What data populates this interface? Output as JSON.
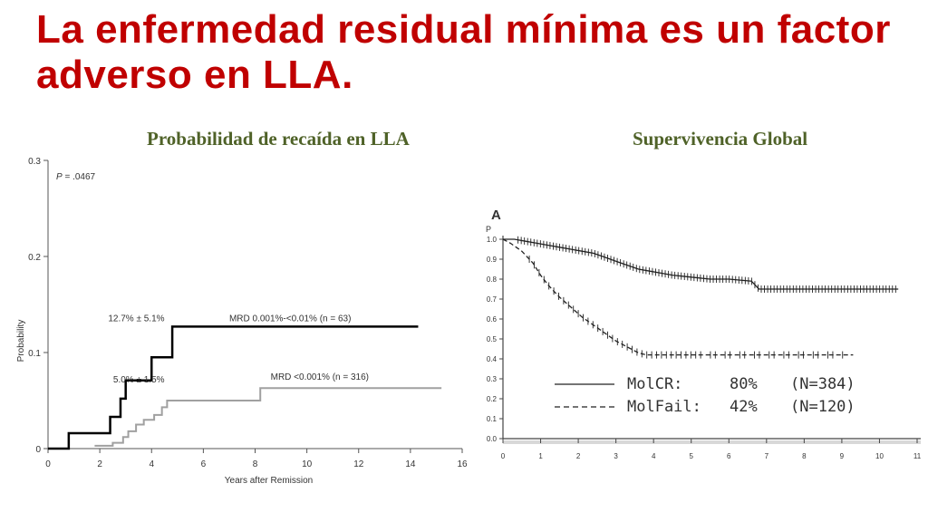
{
  "title": "La enfermedad residual mínima es un factor adverso en LLA.",
  "colors": {
    "title": "#c00000",
    "subtitle": "#4f6228",
    "series_dark": "#000000",
    "series_light": "#a0a0a0"
  },
  "chart_data": [
    {
      "type": "line",
      "subtitle": "Probabilidad de recaída en LLA",
      "xlabel": "Years after Remission",
      "ylabel": "Probability",
      "xlim": [
        0,
        16
      ],
      "ylim": [
        0,
        0.3
      ],
      "xticks": [
        "0",
        "2",
        "4",
        "6",
        "8",
        "10",
        "12",
        "14",
        "16"
      ],
      "yticks": [
        "0",
        "0.1",
        "0.2",
        "0.3"
      ],
      "pvalue_label": "P",
      "pvalue_text": " = .0467",
      "series": [
        {
          "name": "MRD 0.001%-<0.01%  (n = 63)",
          "annotation": "12.7% ± 5.1%",
          "color": "#000000",
          "step": true,
          "x": [
            0,
            0.8,
            2.4,
            2.8,
            3.0,
            4.0,
            4.8,
            14.3
          ],
          "y": [
            0,
            0.016,
            0.033,
            0.052,
            0.071,
            0.095,
            0.127,
            0.127
          ]
        },
        {
          "name": "MRD <0.001%  (n = 316)",
          "annotation": "5.0% ± 1.5%",
          "color": "#a0a0a0",
          "step": true,
          "x": [
            1.8,
            2.5,
            2.9,
            3.1,
            3.4,
            3.7,
            4.1,
            4.4,
            4.6,
            8.2,
            15.2
          ],
          "y": [
            0.003,
            0.006,
            0.012,
            0.018,
            0.025,
            0.03,
            0.035,
            0.043,
            0.05,
            0.063,
            0.063
          ]
        }
      ]
    },
    {
      "type": "line",
      "subtitle": "Supervivencia Global",
      "panel_label": "A",
      "ylabel": "P",
      "xlim": [
        0,
        11
      ],
      "ylim": [
        0,
        1.0
      ],
      "xticks": [
        "0",
        "1",
        "2",
        "3",
        "4",
        "5",
        "6",
        "7",
        "8",
        "9",
        "10",
        "11"
      ],
      "yticks": [
        "0.0",
        "0.1",
        "0.2",
        "0.3",
        "0.4",
        "0.5",
        "0.6",
        "0.7",
        "0.8",
        "0.9",
        "1.0"
      ],
      "legend": [
        {
          "name": "MolCR:",
          "pct": "80%",
          "n": "(N=384)",
          "dash": "solid"
        },
        {
          "name": "MolFail:",
          "pct": "42%",
          "n": "(N=120)",
          "dash": "dashed"
        }
      ],
      "series": [
        {
          "name": "MolCR",
          "color": "#222222",
          "dash": "solid",
          "step": false,
          "x": [
            0,
            0.3,
            0.6,
            0.9,
            1.2,
            1.5,
            1.8,
            2.1,
            2.4,
            2.7,
            3.0,
            3.3,
            3.6,
            3.9,
            4.2,
            4.5,
            5.0,
            5.5,
            6.0,
            6.6,
            6.8,
            7.5,
            8.5,
            9.5,
            10.5
          ],
          "y": [
            1.0,
            1.0,
            0.99,
            0.98,
            0.97,
            0.96,
            0.95,
            0.94,
            0.93,
            0.91,
            0.89,
            0.87,
            0.85,
            0.84,
            0.83,
            0.82,
            0.81,
            0.8,
            0.8,
            0.79,
            0.75,
            0.75,
            0.75,
            0.75,
            0.75
          ]
        },
        {
          "name": "MolFail",
          "color": "#222222",
          "dash": "dashed",
          "step": false,
          "x": [
            0,
            0.2,
            0.5,
            0.8,
            1.0,
            1.2,
            1.5,
            1.8,
            2.1,
            2.4,
            2.7,
            3.0,
            3.3,
            3.6,
            3.8,
            4.5,
            5.5,
            6.5,
            7.5,
            8.5,
            9.3
          ],
          "y": [
            1.0,
            0.98,
            0.94,
            0.88,
            0.82,
            0.77,
            0.71,
            0.66,
            0.61,
            0.57,
            0.53,
            0.49,
            0.46,
            0.43,
            0.42,
            0.42,
            0.42,
            0.42,
            0.42,
            0.42,
            0.42
          ]
        }
      ]
    }
  ]
}
